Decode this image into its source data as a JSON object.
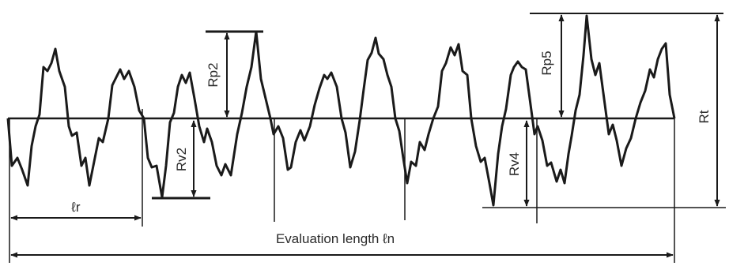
{
  "diagram": {
    "labels": {
      "rp2": "Rp2",
      "rv2": "Rv2",
      "rp5": "Rp5",
      "rv4": "Rv4",
      "rt": "Rt",
      "sampling_length": "ℓr",
      "evaluation_length": "Evaluation length ℓn"
    },
    "colors": {
      "stroke": "#1a1a1a",
      "background": "#ffffff",
      "text": "#2a2a2a"
    }
  }
}
